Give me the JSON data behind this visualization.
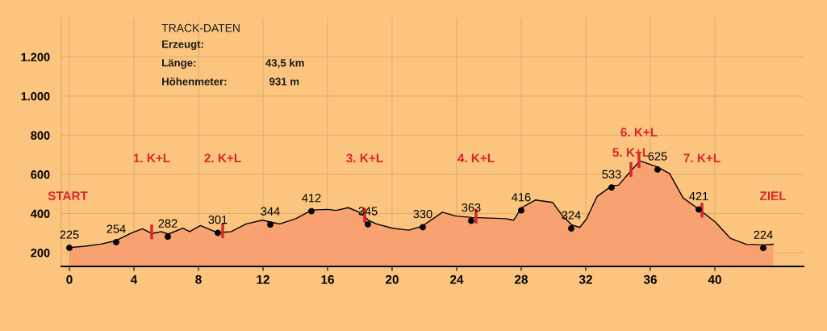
{
  "chart_data": {
    "type": "area",
    "x": [
      0,
      0.95,
      1.95,
      2.87,
      3.87,
      4.53,
      5.12,
      5.7,
      6.12,
      7.03,
      7.45,
      8.12,
      9.2,
      10.03,
      10.95,
      11.95,
      12.45,
      13.03,
      14.03,
      15.03,
      16.03,
      16.53,
      17.28,
      18.03,
      18.53,
      19.03,
      20.03,
      21.03,
      21.87,
      23.12,
      23.95,
      24.95,
      26.03,
      27.03,
      27.53,
      28.03,
      28.87,
      29.95,
      30.53,
      31.12,
      31.62,
      32.03,
      32.7,
      33.62,
      34.03,
      34.95,
      35.37,
      35.95,
      36.45,
      37.2,
      38.03,
      39.03,
      40.03,
      40.95,
      41.95,
      43.03,
      43.62
    ],
    "series": [
      {
        "color": "#f9a271",
        "values": [
          226,
          233,
          244,
          261,
          302,
          322,
          298,
          308,
          295,
          325,
          308,
          339,
          302,
          308,
          347,
          366,
          357,
          347,
          374,
          418,
          421,
          416,
          430,
          405,
          366,
          347,
          325,
          315,
          336,
          407,
          387,
          380,
          377,
          374,
          366,
          430,
          469,
          457,
          391,
          343,
          329,
          370,
          487,
          542,
          545,
          632,
          669,
          652,
          638,
          604,
          480,
          421,
          357,
          274,
          243,
          240,
          243
        ]
      },
      {
        "type": "scatter",
        "marker": "circle",
        "color": "#000000",
        "x": [
          0,
          2.9,
          6.1,
          9.2,
          12.45,
          15.0,
          18.5,
          21.9,
          24.9,
          28.0,
          31.1,
          33.6,
          36.45,
          39.0,
          43.0
        ],
        "values": [
          225,
          254,
          282,
          301,
          344,
          412,
          345,
          330,
          363,
          416,
          324,
          533,
          625,
          421,
          224
        ],
        "value_labels": [
          "225",
          "254",
          "282",
          "301",
          "344",
          "412",
          "345",
          "330",
          "363",
          "416",
          "324",
          "533",
          "625",
          "421",
          "224"
        ]
      }
    ],
    "xlim": [
      -0.5,
      45.5
    ],
    "xticks": [
      0,
      4,
      8,
      12,
      16,
      20,
      24,
      28,
      32,
      36,
      40
    ],
    "ylim": [
      130,
      1400
    ],
    "yticks": [
      200,
      400,
      600,
      {
        "value": 800,
        "label": "800"
      },
      {
        "value": 1000,
        "label": "1.000"
      },
      {
        "value": 1200,
        "label": "1.200"
      }
    ],
    "grid": true,
    "annotations": [
      "TRACK-DATEN",
      "Erzeugt:",
      "Länge:",
      "43,5 km",
      "Höhenmeter:",
      "931 m",
      "START",
      "ZIEL",
      "1. K+L",
      "2. K+L",
      "3. K+L",
      "4. K+L",
      "5. K+L",
      "6. K+L",
      "7. K+L"
    ]
  }
}
